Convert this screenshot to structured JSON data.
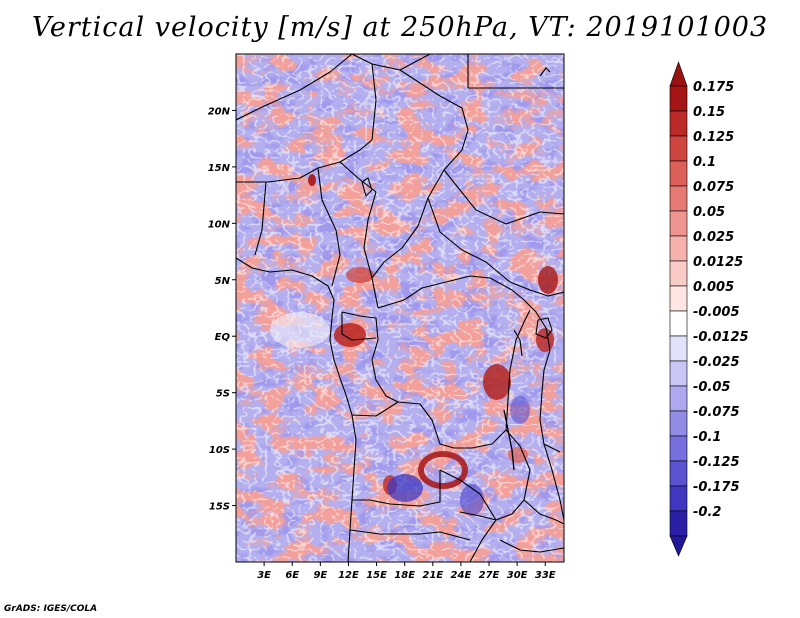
{
  "title": "Vertical velocity [m/s] at 250hPa, VT: 2019101003",
  "credit": "GrADS: IGES/COLA",
  "map": {
    "lat_range": [
      -20,
      25
    ],
    "lon_range": [
      0,
      35
    ],
    "lat_ticks": [
      {
        "value": 20,
        "label": "20N"
      },
      {
        "value": 15,
        "label": "15N"
      },
      {
        "value": 10,
        "label": "10N"
      },
      {
        "value": 5,
        "label": "5N"
      },
      {
        "value": 0,
        "label": "EQ"
      },
      {
        "value": -5,
        "label": "5S"
      },
      {
        "value": -10,
        "label": "10S"
      },
      {
        "value": -15,
        "label": "15S"
      }
    ],
    "lon_ticks": [
      {
        "value": 3,
        "label": "3E"
      },
      {
        "value": 6,
        "label": "6E"
      },
      {
        "value": 9,
        "label": "9E"
      },
      {
        "value": 12,
        "label": "12E"
      },
      {
        "value": 15,
        "label": "15E"
      },
      {
        "value": 18,
        "label": "18E"
      },
      {
        "value": 21,
        "label": "21E"
      },
      {
        "value": 24,
        "label": "24E"
      },
      {
        "value": 27,
        "label": "27E"
      },
      {
        "value": 30,
        "label": "30E"
      },
      {
        "value": 33,
        "label": "33E"
      }
    ]
  },
  "colorbar": {
    "levels": [
      {
        "label": "0.175",
        "color": "#a51515"
      },
      {
        "label": "0.15",
        "color": "#bb2a26"
      },
      {
        "label": "0.125",
        "color": "#cf4540"
      },
      {
        "label": "0.1",
        "color": "#dd5f59"
      },
      {
        "label": "0.075",
        "color": "#e77a74"
      },
      {
        "label": "0.05",
        "color": "#ef958f"
      },
      {
        "label": "0.025",
        "color": "#f5b2ad"
      },
      {
        "label": "0.0125",
        "color": "#f9ccc8"
      },
      {
        "label": "0.005",
        "color": "#fde6e3"
      },
      {
        "label": "-0.005",
        "color": "#ffffff"
      },
      {
        "label": "-0.0125",
        "color": "#e4e2fb"
      },
      {
        "label": "-0.025",
        "color": "#c9c6f6"
      },
      {
        "label": "-0.05",
        "color": "#aea9ef"
      },
      {
        "label": "-0.075",
        "color": "#928ce7"
      },
      {
        "label": "-0.1",
        "color": "#766fdd"
      },
      {
        "label": "-0.125",
        "color": "#5a53cf"
      },
      {
        "label": "-0.175",
        "color": "#3f37bf"
      },
      {
        "label": "-0.2",
        "color": "#2a1fa6"
      }
    ],
    "top_cap_color": "#9a1212",
    "bottom_cap_color": "#22189a"
  }
}
